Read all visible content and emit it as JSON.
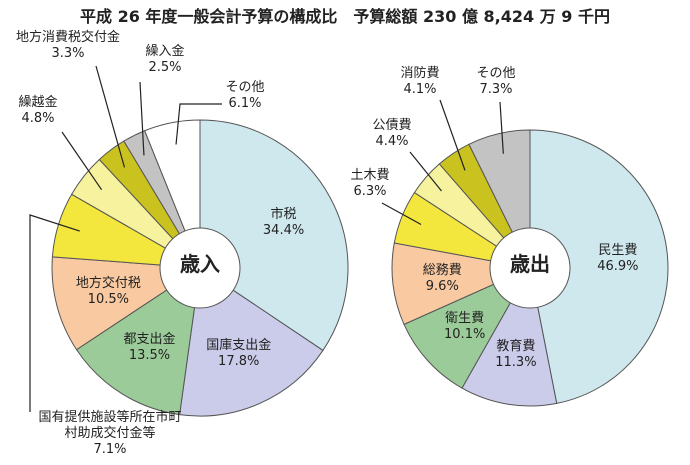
{
  "title": "平成 26 年度一般会計予算の構成比　予算総額 230 億 8,424 万 9 千円",
  "chart_data": [
    {
      "type": "pie",
      "center_label": "歳入",
      "categories": [
        "市税",
        "国庫支出金",
        "都支出金",
        "地方交付税",
        "国有提供施設等所在市町村助成交付金等",
        "繰越金",
        "地方消費税交付金",
        "繰入金",
        "その他"
      ],
      "values": [
        34.4,
        17.8,
        13.5,
        10.5,
        7.1,
        4.8,
        3.3,
        2.5,
        6.1
      ],
      "value_labels": [
        "34.4%",
        "17.8%",
        "13.5%",
        "10.5%",
        "7.1%",
        "4.8%",
        "3.3%",
        "2.5%",
        "6.1%"
      ],
      "colors": [
        "#cfe8ee",
        "#cbcbea",
        "#9ccb9a",
        "#f9c9a1",
        "#f3e63d",
        "#f6f29e",
        "#c9c21f",
        "#c3c3c3",
        "#ffffff"
      ]
    },
    {
      "type": "pie",
      "center_label": "歳出",
      "categories": [
        "民生費",
        "教育費",
        "衛生費",
        "総務費",
        "土木費",
        "公債費",
        "消防費",
        "その他"
      ],
      "values": [
        46.9,
        11.3,
        10.1,
        9.6,
        6.3,
        4.4,
        4.1,
        7.3
      ],
      "value_labels": [
        "46.9%",
        "11.3%",
        "10.1%",
        "9.6%",
        "6.3%",
        "4.4%",
        "4.1%",
        "7.3%"
      ],
      "colors": [
        "#cfe8ee",
        "#cbcbea",
        "#9ccb9a",
        "#f9c9a1",
        "#f3e63d",
        "#f6f29e",
        "#c9c21f",
        "#c3c3c3"
      ]
    }
  ]
}
